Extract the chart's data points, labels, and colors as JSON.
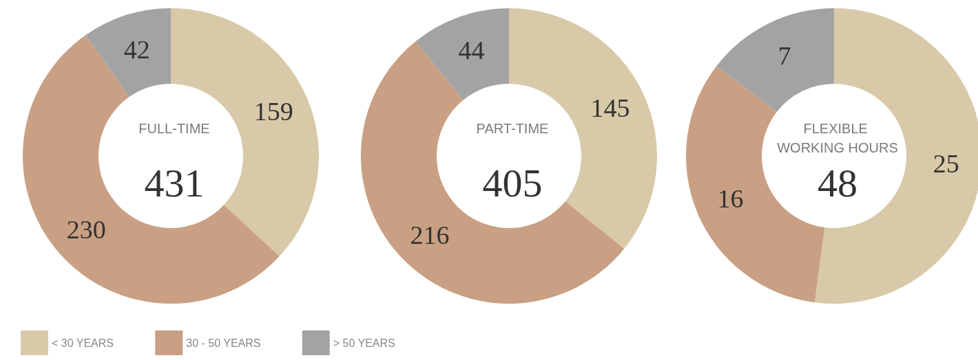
{
  "chart_data": [
    {
      "type": "donut",
      "title": "FULL-TIME",
      "annotations": [
        "431"
      ],
      "categories": [
        "< 30 YEARS",
        "30 - 50 YEARS",
        "> 50 YEARS"
      ],
      "values": [
        159,
        230,
        42
      ],
      "colors": [
        "#d8c9a8",
        "#c9a083",
        "#a3a3a3"
      ],
      "data_labels": true,
      "legend": "bottom"
    },
    {
      "type": "donut",
      "title": "PART-TIME",
      "annotations": [
        "405"
      ],
      "categories": [
        null,
        null,
        null
      ],
      "values": [
        145,
        216,
        44
      ],
      "colors": [
        "#d8c9a8",
        "#c9a083",
        "#a3a3a3"
      ],
      "data_labels": true
    },
    {
      "type": "donut",
      "title": "FLEXIBLE WORKING HOURS",
      "annotations": [
        "48"
      ],
      "categories": [
        null,
        null,
        null
      ],
      "values": [
        25,
        16,
        7
      ],
      "colors": [
        "#d8c9a8",
        "#c9a083",
        "#a3a3a3"
      ],
      "data_labels": true
    }
  ]
}
